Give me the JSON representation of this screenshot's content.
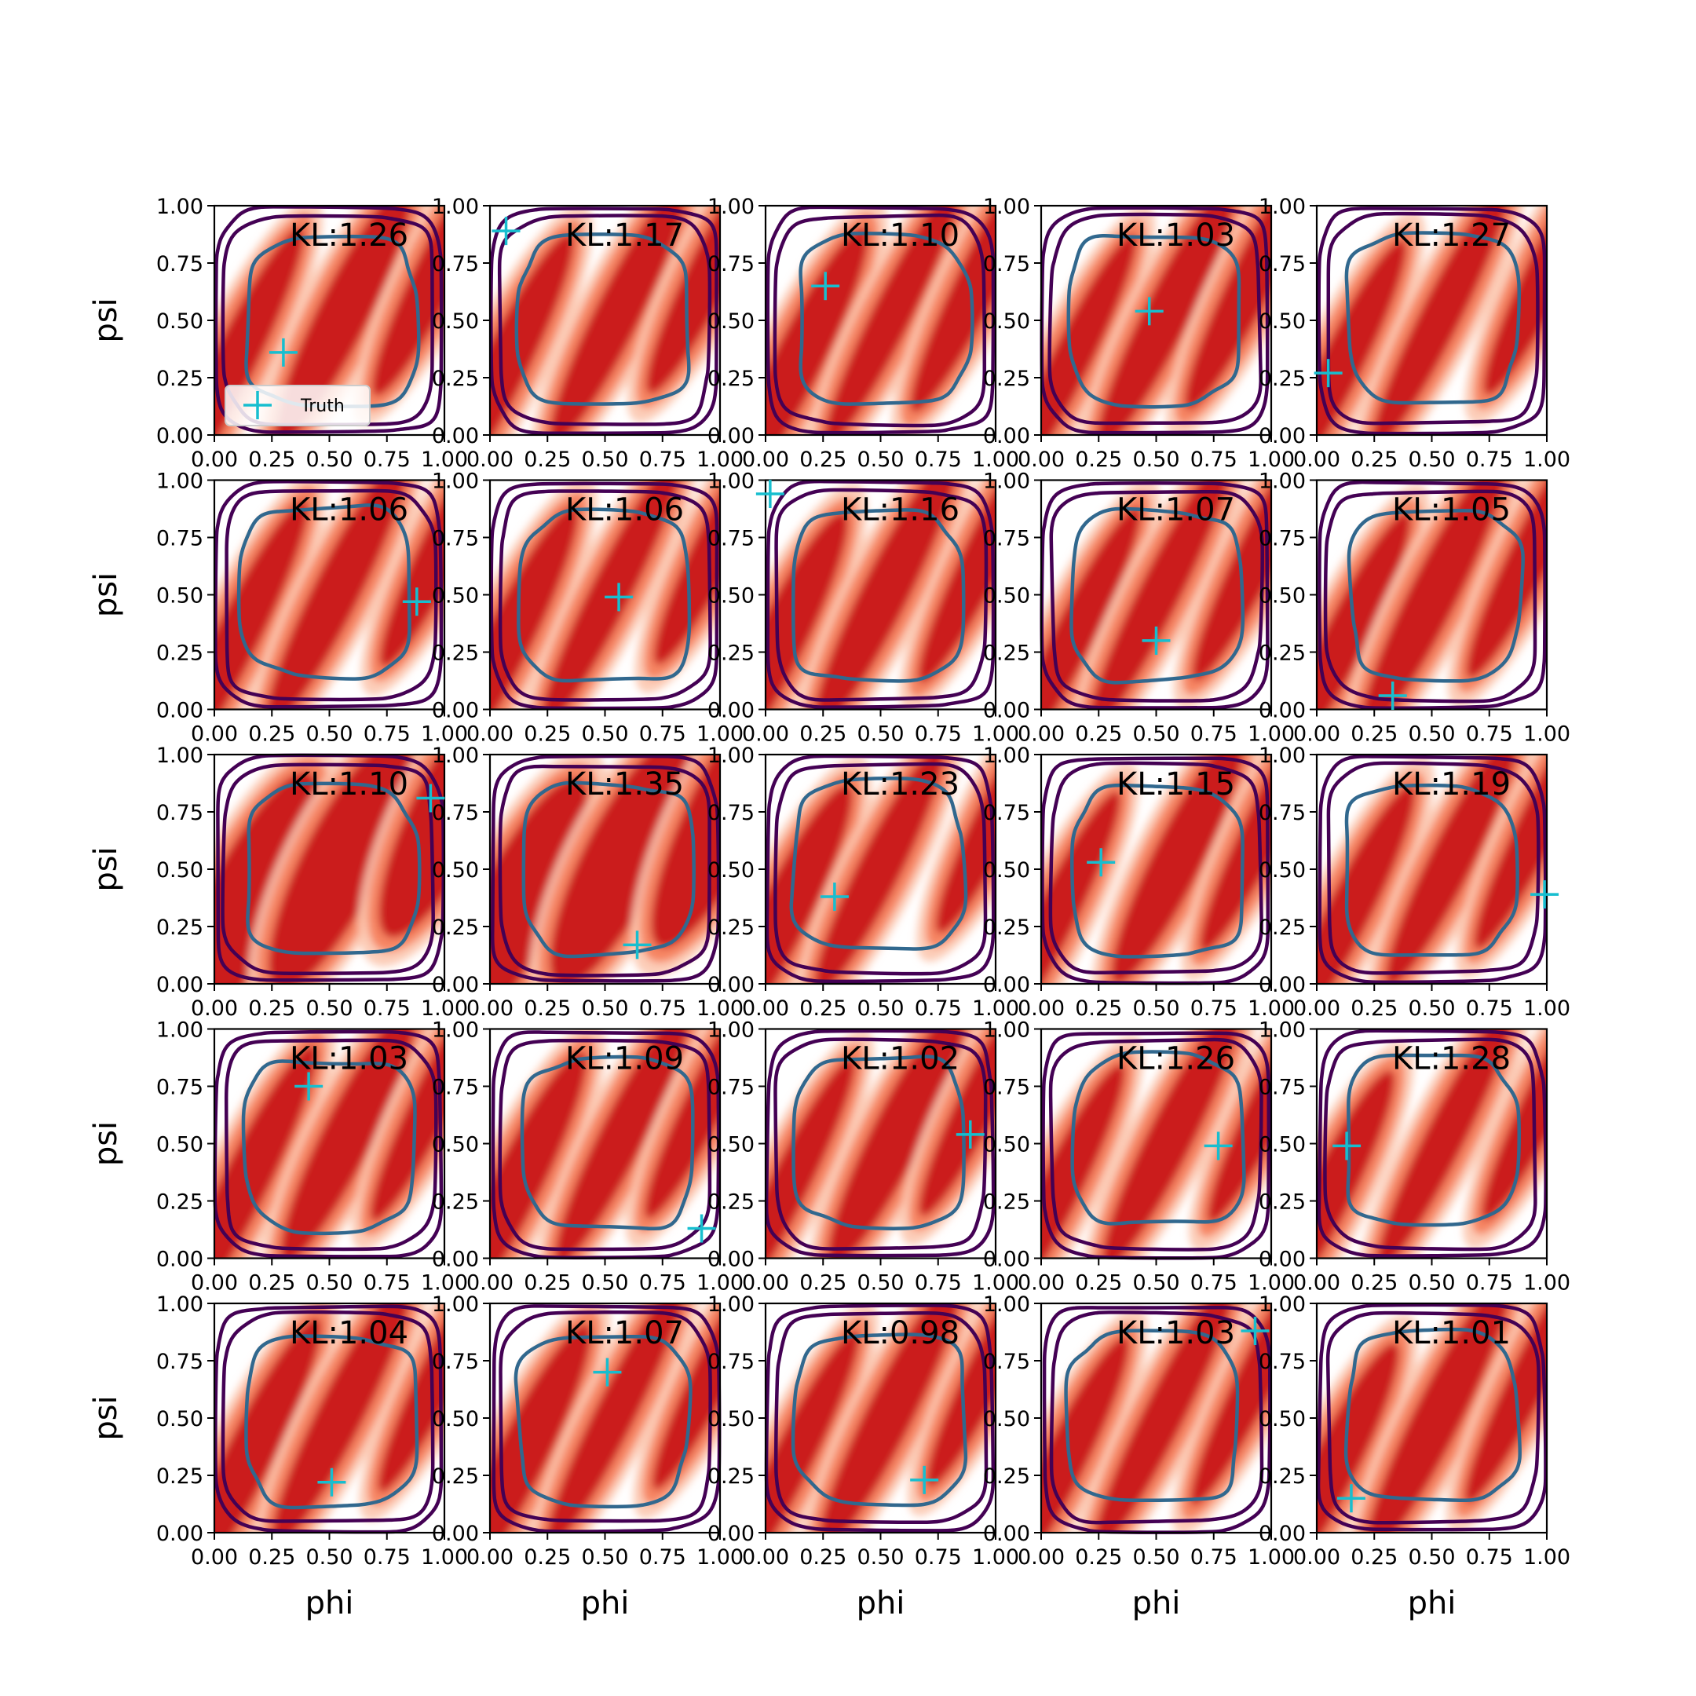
{
  "chart_data": {
    "type": "scatter",
    "layout": {
      "rows": 5,
      "cols": 5
    },
    "xlabel": "phi",
    "ylabel": "psi",
    "xlim": [
      0,
      1
    ],
    "ylim": [
      0,
      1
    ],
    "tick_labels": [
      "0.00",
      "0.25",
      "0.50",
      "0.75",
      "1.00"
    ],
    "grid": false,
    "legend": {
      "label": "Truth",
      "location": "lower-left",
      "panel": 0
    },
    "colors": {
      "density_light": "#fcc8b0",
      "density_mid": "#f6825f",
      "density_dark": "#cb1d1e",
      "contour_outer": "#440154",
      "contour_inner": "#31688e",
      "truth_marker": "#17becf"
    },
    "panels": [
      {
        "kl": "KL:1.26",
        "truth": [
          0.3,
          0.36
        ]
      },
      {
        "kl": "KL:1.17",
        "truth": [
          0.07,
          0.89
        ]
      },
      {
        "kl": "KL:1.10",
        "truth": [
          0.26,
          0.65
        ]
      },
      {
        "kl": "KL:1.03",
        "truth": [
          0.47,
          0.54
        ]
      },
      {
        "kl": "KL:1.27",
        "truth": [
          0.05,
          0.27
        ]
      },
      {
        "kl": "KL:1.06",
        "truth": [
          0.88,
          0.47
        ]
      },
      {
        "kl": "KL:1.06",
        "truth": [
          0.56,
          0.49
        ]
      },
      {
        "kl": "KL:1.16",
        "truth": [
          0.02,
          0.94
        ]
      },
      {
        "kl": "KL:1.07",
        "truth": [
          0.5,
          0.3
        ]
      },
      {
        "kl": "KL:1.05",
        "truth": [
          0.33,
          0.06
        ]
      },
      {
        "kl": "KL:1.10",
        "truth": [
          0.94,
          0.81
        ]
      },
      {
        "kl": "KL:1.35",
        "truth": [
          0.64,
          0.17
        ]
      },
      {
        "kl": "KL:1.23",
        "truth": [
          0.3,
          0.38
        ]
      },
      {
        "kl": "KL:1.15",
        "truth": [
          0.26,
          0.53
        ]
      },
      {
        "kl": "KL:1.19",
        "truth": [
          0.99,
          0.39
        ]
      },
      {
        "kl": "KL:1.03",
        "truth": [
          0.41,
          0.75
        ]
      },
      {
        "kl": "KL:1.09",
        "truth": [
          0.92,
          0.13
        ]
      },
      {
        "kl": "KL:1.02",
        "truth": [
          0.89,
          0.54
        ]
      },
      {
        "kl": "KL:1.26",
        "truth": [
          0.77,
          0.49
        ]
      },
      {
        "kl": "KL:1.28",
        "truth": [
          0.13,
          0.49
        ]
      },
      {
        "kl": "KL:1.04",
        "truth": [
          0.51,
          0.22
        ]
      },
      {
        "kl": "KL:1.07",
        "truth": [
          0.51,
          0.7
        ]
      },
      {
        "kl": "KL:0.98",
        "truth": [
          0.69,
          0.23
        ]
      },
      {
        "kl": "KL:1.03",
        "truth": [
          0.93,
          0.88
        ]
      },
      {
        "kl": "KL:1.01",
        "truth": [
          0.15,
          0.15
        ]
      }
    ]
  }
}
